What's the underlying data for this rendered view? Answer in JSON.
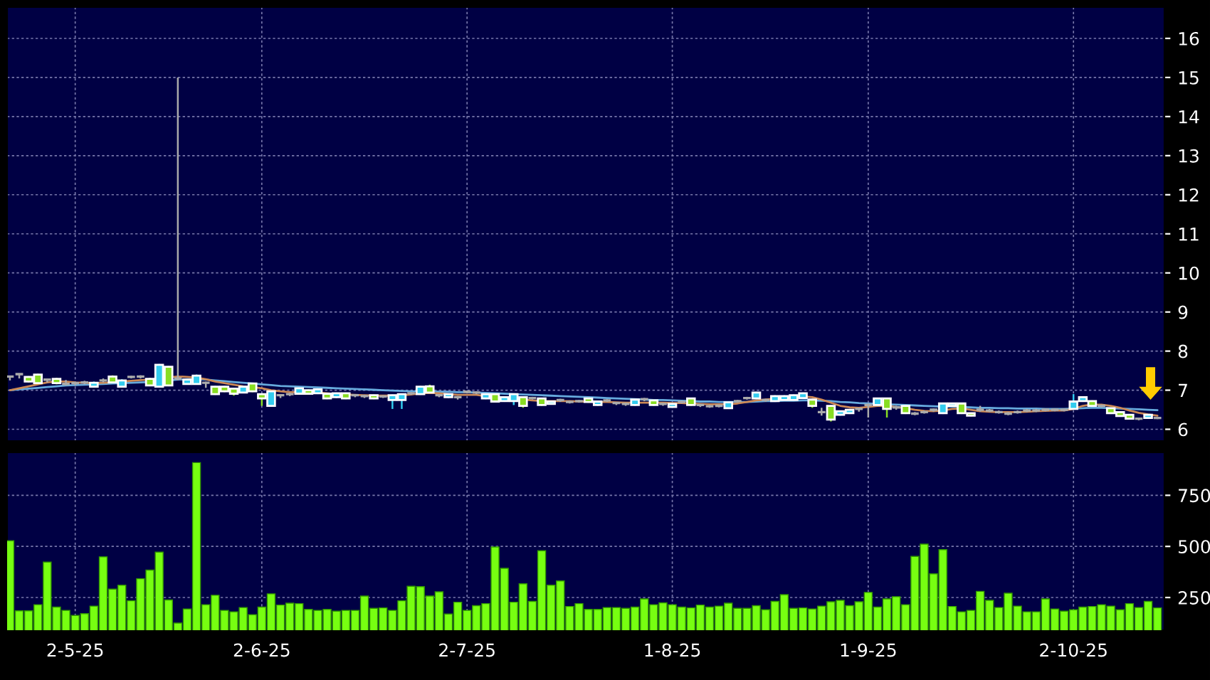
{
  "chart_data": [
    {
      "type": "candlestick",
      "tick_labels": "y",
      "grid": true,
      "categories": [
        null,
        null,
        null,
        null,
        null,
        null,
        null,
        null,
        null,
        null,
        null,
        null,
        null,
        null,
        null,
        null,
        null,
        null,
        null,
        null,
        null,
        null,
        null,
        null,
        null,
        null,
        null,
        null,
        null,
        null,
        null,
        null,
        null,
        null,
        null,
        null,
        null,
        null,
        null,
        null,
        null,
        null,
        null,
        null,
        null,
        null,
        null,
        null,
        null,
        null,
        null,
        null,
        null,
        null,
        null,
        null,
        null,
        null,
        null,
        null,
        null,
        null,
        null,
        null,
        null,
        null,
        null,
        null,
        null,
        null,
        null,
        null,
        null,
        null,
        null,
        null,
        null,
        null,
        null,
        null,
        null,
        null,
        null,
        null,
        null,
        null,
        null,
        null,
        null,
        null,
        null,
        null,
        null,
        null,
        null,
        null,
        null,
        null,
        null,
        null,
        null,
        null,
        null,
        null,
        null,
        null,
        null,
        null,
        null,
        null,
        null,
        null,
        null,
        null,
        null,
        null,
        null,
        null,
        null,
        null,
        null,
        null,
        null,
        null
      ],
      "ylim": [
        5.7,
        16.8
      ],
      "yticks": [
        6,
        7,
        8,
        9,
        10,
        11,
        12,
        13,
        14,
        15,
        16
      ],
      "ohlc": [
        [
          7.35,
          7.37,
          7.25,
          7.35
        ],
        [
          7.41,
          7.43,
          7.3,
          7.41
        ],
        [
          7.34,
          7.36,
          7.2,
          7.22
        ],
        [
          7.4,
          7.42,
          7.16,
          7.18
        ],
        [
          7.27,
          7.3,
          7.2,
          7.27
        ],
        [
          7.29,
          7.32,
          7.15,
          7.18
        ],
        [
          7.16,
          7.26,
          7.12,
          7.16
        ],
        [
          7.18,
          7.22,
          7.12,
          7.18
        ],
        [
          7.2,
          7.24,
          7.15,
          7.2
        ],
        [
          7.09,
          7.22,
          7.07,
          7.19
        ],
        [
          7.25,
          7.3,
          7.2,
          7.25
        ],
        [
          7.35,
          7.38,
          7.18,
          7.2
        ],
        [
          7.09,
          7.28,
          7.07,
          7.25
        ],
        [
          7.34,
          7.37,
          7.3,
          7.34
        ],
        [
          7.35,
          7.38,
          7.3,
          7.35
        ],
        [
          7.29,
          7.32,
          7.1,
          7.12
        ],
        [
          7.09,
          7.67,
          7.07,
          7.65
        ],
        [
          7.6,
          7.62,
          7.1,
          7.12
        ],
        [
          7.3,
          15.0,
          7.25,
          7.3
        ],
        [
          7.16,
          7.3,
          7.14,
          7.27
        ],
        [
          7.16,
          7.4,
          7.14,
          7.37
        ],
        [
          7.19,
          7.22,
          7.06,
          7.19
        ],
        [
          7.09,
          7.11,
          6.88,
          6.9
        ],
        [
          7.09,
          7.11,
          6.95,
          6.97
        ],
        [
          7.04,
          7.06,
          6.86,
          6.91
        ],
        [
          6.94,
          7.11,
          6.92,
          7.09
        ],
        [
          7.17,
          7.19,
          6.95,
          6.97
        ],
        [
          6.9,
          6.92,
          6.6,
          6.79
        ],
        [
          6.6,
          6.99,
          6.58,
          6.97
        ],
        [
          6.87,
          6.9,
          6.8,
          6.87
        ],
        [
          6.9,
          6.93,
          6.85,
          6.9
        ],
        [
          6.91,
          7.07,
          6.89,
          7.05
        ],
        [
          7.0,
          7.02,
          6.89,
          6.91
        ],
        [
          6.92,
          7.04,
          6.9,
          7.02
        ],
        [
          6.91,
          6.93,
          6.77,
          6.79
        ],
        [
          6.82,
          6.94,
          6.8,
          6.92
        ],
        [
          6.92,
          6.94,
          6.77,
          6.79
        ],
        [
          6.87,
          6.9,
          6.82,
          6.87
        ],
        [
          6.85,
          6.88,
          6.8,
          6.85
        ],
        [
          6.87,
          6.89,
          6.77,
          6.79
        ],
        [
          6.84,
          6.87,
          6.8,
          6.84
        ],
        [
          6.75,
          6.89,
          6.52,
          6.87
        ],
        [
          6.75,
          6.92,
          6.52,
          6.9
        ],
        [
          6.92,
          6.95,
          6.88,
          6.92
        ],
        [
          6.9,
          7.11,
          6.88,
          7.09
        ],
        [
          7.1,
          7.14,
          6.92,
          6.94
        ],
        [
          6.87,
          6.9,
          6.82,
          6.87
        ],
        [
          6.82,
          6.92,
          6.8,
          6.9
        ],
        [
          6.82,
          6.85,
          6.76,
          6.82
        ],
        [
          6.96,
          6.99,
          6.92,
          6.96
        ],
        [
          6.94,
          6.97,
          6.9,
          6.94
        ],
        [
          6.79,
          6.92,
          6.77,
          6.9
        ],
        [
          6.9,
          6.92,
          6.69,
          6.71
        ],
        [
          6.72,
          6.84,
          6.7,
          6.82
        ],
        [
          6.72,
          6.92,
          6.62,
          6.9
        ],
        [
          6.82,
          6.84,
          6.55,
          6.6
        ],
        [
          6.8,
          6.83,
          6.76,
          6.8
        ],
        [
          6.79,
          6.81,
          6.6,
          6.62
        ],
        [
          6.65,
          6.73,
          6.63,
          6.71
        ],
        [
          6.75,
          6.78,
          6.7,
          6.75
        ],
        [
          6.7,
          6.73,
          6.66,
          6.7
        ],
        [
          6.72,
          6.75,
          6.68,
          6.72
        ],
        [
          6.79,
          6.81,
          6.68,
          6.7
        ],
        [
          6.62,
          6.73,
          6.6,
          6.71
        ],
        [
          6.74,
          6.77,
          6.7,
          6.74
        ],
        [
          6.67,
          6.7,
          6.62,
          6.67
        ],
        [
          6.65,
          6.68,
          6.6,
          6.65
        ],
        [
          6.62,
          6.78,
          6.6,
          6.76
        ],
        [
          6.77,
          6.8,
          6.72,
          6.77
        ],
        [
          6.74,
          6.76,
          6.6,
          6.62
        ],
        [
          6.65,
          6.68,
          6.6,
          6.65
        ],
        [
          6.57,
          6.67,
          6.55,
          6.65
        ],
        [
          6.7,
          6.73,
          6.66,
          6.7
        ],
        [
          6.79,
          6.81,
          6.6,
          6.62
        ],
        [
          6.62,
          6.65,
          6.57,
          6.62
        ],
        [
          6.59,
          6.62,
          6.55,
          6.59
        ],
        [
          6.6,
          6.63,
          6.56,
          6.6
        ],
        [
          6.54,
          6.71,
          6.52,
          6.69
        ],
        [
          6.72,
          6.75,
          6.68,
          6.72
        ],
        [
          6.8,
          6.83,
          6.76,
          6.8
        ],
        [
          6.79,
          6.96,
          6.77,
          6.94
        ],
        [
          6.75,
          6.78,
          6.7,
          6.75
        ],
        [
          6.72,
          6.87,
          6.7,
          6.85
        ],
        [
          6.75,
          6.87,
          6.73,
          6.85
        ],
        [
          6.75,
          6.89,
          6.73,
          6.87
        ],
        [
          6.8,
          6.94,
          6.78,
          6.92
        ],
        [
          6.76,
          6.78,
          6.55,
          6.6
        ],
        [
          6.44,
          6.55,
          6.35,
          6.44
        ],
        [
          6.6,
          6.62,
          6.2,
          6.25
        ],
        [
          6.37,
          6.48,
          6.35,
          6.46
        ],
        [
          6.41,
          6.52,
          6.39,
          6.5
        ],
        [
          6.52,
          6.55,
          6.45,
          6.52
        ],
        [
          6.62,
          6.66,
          6.3,
          6.62
        ],
        [
          6.62,
          6.81,
          6.6,
          6.79
        ],
        [
          6.79,
          6.81,
          6.3,
          6.52
        ],
        [
          6.56,
          6.6,
          6.5,
          6.56
        ],
        [
          6.6,
          6.62,
          6.39,
          6.41
        ],
        [
          6.4,
          6.44,
          6.36,
          6.4
        ],
        [
          6.44,
          6.48,
          6.4,
          6.44
        ],
        [
          6.5,
          6.53,
          6.45,
          6.5
        ],
        [
          6.41,
          6.68,
          6.39,
          6.66
        ],
        [
          6.6,
          6.68,
          6.58,
          6.66
        ],
        [
          6.66,
          6.68,
          6.39,
          6.41
        ],
        [
          6.41,
          6.43,
          6.33,
          6.35
        ],
        [
          6.5,
          6.6,
          6.45,
          6.5
        ],
        [
          6.48,
          6.52,
          6.44,
          6.48
        ],
        [
          6.44,
          6.48,
          6.4,
          6.44
        ],
        [
          6.4,
          6.44,
          6.36,
          6.4
        ],
        [
          6.44,
          6.48,
          6.4,
          6.44
        ],
        [
          6.48,
          6.52,
          6.44,
          6.48
        ],
        [
          6.48,
          6.52,
          6.44,
          6.48
        ],
        [
          6.5,
          6.53,
          6.46,
          6.5
        ],
        [
          6.5,
          6.53,
          6.46,
          6.5
        ],
        [
          6.5,
          6.53,
          6.46,
          6.5
        ],
        [
          6.52,
          6.9,
          6.5,
          6.71
        ],
        [
          6.72,
          6.84,
          6.7,
          6.82
        ],
        [
          6.72,
          6.74,
          6.58,
          6.6
        ],
        [
          6.6,
          6.63,
          6.56,
          6.6
        ],
        [
          6.54,
          6.56,
          6.39,
          6.41
        ],
        [
          6.44,
          6.46,
          6.32,
          6.34
        ],
        [
          6.37,
          6.39,
          6.25,
          6.27
        ],
        [
          6.27,
          6.3,
          6.23,
          6.27
        ],
        [
          6.29,
          6.39,
          6.27,
          6.37
        ],
        [
          6.29,
          6.32,
          6.26,
          6.29
        ]
      ],
      "colors": [
        "#aaaaaa",
        "#aaaaaa",
        "#88dd22",
        "#88dd22",
        "#aaaaaa",
        "#88dd22",
        "#aaaaaa",
        "#aaaaaa",
        "#aaaaaa",
        "#33ccee",
        "#aaaaaa",
        "#88dd22",
        "#33ccee",
        "#aaaaaa",
        "#aaaaaa",
        "#88dd22",
        "#33ccee",
        "#88dd22",
        "#aaaaaa",
        "#33ccee",
        "#33ccee",
        "#aaaaaa",
        "#88dd22",
        "#88dd22",
        "#88dd22",
        "#33ccee",
        "#88dd22",
        "#88dd22",
        "#33ccee",
        "#aaaaaa",
        "#aaaaaa",
        "#33ccee",
        "#88dd22",
        "#33ccee",
        "#88dd22",
        "#33ccee",
        "#88dd22",
        "#aaaaaa",
        "#aaaaaa",
        "#88dd22",
        "#aaaaaa",
        "#33ccee",
        "#33ccee",
        "#aaaaaa",
        "#33ccee",
        "#88dd22",
        "#aaaaaa",
        "#33ccee",
        "#aaaaaa",
        "#aaaaaa",
        "#aaaaaa",
        "#33ccee",
        "#88dd22",
        "#33ccee",
        "#33ccee",
        "#88dd22",
        "#aaaaaa",
        "#88dd22",
        "#33ccee",
        "#aaaaaa",
        "#aaaaaa",
        "#aaaaaa",
        "#88dd22",
        "#33ccee",
        "#aaaaaa",
        "#aaaaaa",
        "#aaaaaa",
        "#33ccee",
        "#aaaaaa",
        "#88dd22",
        "#aaaaaa",
        "#33ccee",
        "#aaaaaa",
        "#88dd22",
        "#aaaaaa",
        "#aaaaaa",
        "#aaaaaa",
        "#33ccee",
        "#aaaaaa",
        "#aaaaaa",
        "#33ccee",
        "#aaaaaa",
        "#33ccee",
        "#33ccee",
        "#33ccee",
        "#33ccee",
        "#88dd22",
        "#aaaaaa",
        "#88dd22",
        "#33ccee",
        "#33ccee",
        "#aaaaaa",
        "#aaaaaa",
        "#33ccee",
        "#88dd22",
        "#aaaaaa",
        "#88dd22",
        "#aaaaaa",
        "#aaaaaa",
        "#aaaaaa",
        "#33ccee",
        "#33ccee",
        "#88dd22",
        "#88dd22",
        "#aaaaaa",
        "#aaaaaa",
        "#aaaaaa",
        "#aaaaaa",
        "#aaaaaa",
        "#aaaaaa",
        "#aaaaaa",
        "#aaaaaa",
        "#aaaaaa",
        "#aaaaaa",
        "#33ccee",
        "#33ccee",
        "#88dd22",
        "#aaaaaa",
        "#88dd22",
        "#88dd22",
        "#88dd22",
        "#aaaaaa",
        "#33ccee",
        "#aaaaaa"
      ],
      "series": [
        {
          "type": "line",
          "color": "#66aadd",
          "values": [
            7.0,
            7.02,
            7.04,
            7.06,
            7.08,
            7.1,
            7.12,
            7.13,
            7.14,
            7.15,
            7.16,
            7.17,
            7.18,
            7.19,
            7.2,
            7.21,
            7.23,
            7.25,
            7.27,
            7.28,
            7.28,
            7.27,
            7.25,
            7.23,
            7.21,
            7.19,
            7.17,
            7.15,
            7.13,
            7.11,
            7.1,
            7.09,
            7.08,
            7.07,
            7.06,
            7.05,
            7.04,
            7.03,
            7.02,
            7.01,
            7.0,
            6.99,
            6.98,
            6.97,
            6.97,
            6.97,
            6.96,
            6.96,
            6.95,
            6.95,
            6.94,
            6.93,
            6.92,
            6.91,
            6.9,
            6.89,
            6.88,
            6.87,
            6.86,
            6.85,
            6.84,
            6.83,
            6.82,
            6.81,
            6.8,
            6.79,
            6.78,
            6.77,
            6.76,
            6.75,
            6.75,
            6.74,
            6.73,
            6.72,
            6.71,
            6.71,
            6.7,
            6.7,
            6.7,
            6.7,
            6.71,
            6.72,
            6.72,
            6.73,
            6.73,
            6.74,
            6.74,
            6.73,
            6.72,
            6.7,
            6.69,
            6.67,
            6.66,
            6.65,
            6.64,
            6.63,
            6.62,
            6.61,
            6.6,
            6.59,
            6.58,
            6.58,
            6.57,
            6.56,
            6.55,
            6.55,
            6.54,
            6.54,
            6.53,
            6.53,
            6.53,
            6.52,
            6.52,
            6.52,
            6.53,
            6.54,
            6.55,
            6.55,
            6.54,
            6.53,
            6.52,
            6.51,
            6.5,
            6.49
          ]
        },
        {
          "type": "line",
          "color": "#cc8855",
          "values": [
            7.0,
            7.05,
            7.1,
            7.15,
            7.2,
            7.22,
            7.22,
            7.2,
            7.19,
            7.18,
            7.19,
            7.2,
            7.22,
            7.24,
            7.26,
            7.27,
            7.3,
            7.33,
            7.35,
            7.34,
            7.32,
            7.28,
            7.22,
            7.18,
            7.14,
            7.1,
            7.08,
            7.05,
            7.0,
            6.97,
            6.95,
            6.95,
            6.95,
            6.94,
            6.92,
            6.9,
            6.89,
            6.88,
            6.87,
            6.86,
            6.86,
            6.86,
            6.87,
            6.89,
            6.92,
            6.93,
            6.92,
            6.9,
            6.88,
            6.88,
            6.88,
            6.85,
            6.82,
            6.8,
            6.78,
            6.76,
            6.74,
            6.72,
            6.72,
            6.72,
            6.72,
            6.71,
            6.71,
            6.7,
            6.7,
            6.69,
            6.68,
            6.68,
            6.68,
            6.68,
            6.68,
            6.67,
            6.67,
            6.66,
            6.65,
            6.64,
            6.64,
            6.64,
            6.66,
            6.7,
            6.74,
            6.76,
            6.78,
            6.8,
            6.82,
            6.84,
            6.82,
            6.76,
            6.68,
            6.6,
            6.56,
            6.55,
            6.57,
            6.6,
            6.6,
            6.57,
            6.54,
            6.5,
            6.47,
            6.46,
            6.48,
            6.52,
            6.53,
            6.5,
            6.46,
            6.45,
            6.44,
            6.44,
            6.44,
            6.45,
            6.46,
            6.47,
            6.48,
            6.48,
            6.52,
            6.6,
            6.63,
            6.63,
            6.6,
            6.55,
            6.48,
            6.42,
            6.38,
            6.35
          ]
        }
      ]
    },
    {
      "type": "bar",
      "grid": true,
      "color": "#77ff11",
      "categories": [
        null,
        null,
        null,
        null,
        null,
        null,
        null,
        "2-5-25",
        null,
        null,
        null,
        null,
        null,
        null,
        null,
        null,
        null,
        null,
        null,
        null,
        null,
        null,
        null,
        null,
        null,
        null,
        null,
        "2-6-25",
        null,
        null,
        null,
        null,
        null,
        null,
        null,
        null,
        null,
        null,
        null,
        null,
        null,
        null,
        null,
        null,
        null,
        null,
        null,
        null,
        null,
        "2-7-25",
        null,
        null,
        null,
        null,
        null,
        null,
        null,
        null,
        null,
        null,
        null,
        null,
        null,
        null,
        null,
        null,
        null,
        null,
        null,
        null,
        null,
        "1-8-25",
        null,
        null,
        null,
        null,
        null,
        null,
        null,
        null,
        null,
        null,
        null,
        null,
        null,
        null,
        null,
        null,
        null,
        null,
        null,
        null,
        "1-9-25",
        null,
        null,
        null,
        null,
        null,
        null,
        null,
        null,
        null,
        null,
        null,
        null,
        null,
        null,
        null,
        null,
        null,
        null,
        null,
        null,
        null,
        "2-10-25",
        null,
        null,
        null,
        null,
        null,
        null,
        null,
        null,
        null
      ],
      "ylim": [
        90,
        960
      ],
      "yticks": [
        250,
        500,
        750
      ],
      "values": [
        528,
        185,
        185,
        215,
        423,
        203,
        187,
        162,
        171,
        208,
        449,
        291,
        310,
        234,
        342,
        384,
        472,
        238,
        125,
        194,
        910,
        215,
        261,
        187,
        180,
        201,
        166,
        203,
        268,
        213,
        222,
        220,
        192,
        187,
        192,
        183,
        187,
        187,
        257,
        197,
        199,
        187,
        234,
        305,
        303,
        257,
        278,
        169,
        227,
        187,
        210,
        220,
        497,
        393,
        227,
        317,
        231,
        479,
        310,
        331,
        206,
        220,
        192,
        192,
        201,
        201,
        197,
        203,
        243,
        215,
        224,
        215,
        203,
        199,
        213,
        203,
        208,
        222,
        197,
        197,
        210,
        190,
        231,
        264,
        197,
        199,
        194,
        208,
        229,
        236,
        210,
        229,
        275,
        203,
        243,
        254,
        215,
        451,
        511,
        366,
        484,
        206,
        180,
        187,
        280,
        236,
        201,
        271,
        208,
        180,
        180,
        243,
        194,
        183,
        190,
        203,
        206,
        215,
        208,
        190,
        220,
        201,
        231,
        199
      ]
    }
  ]
}
